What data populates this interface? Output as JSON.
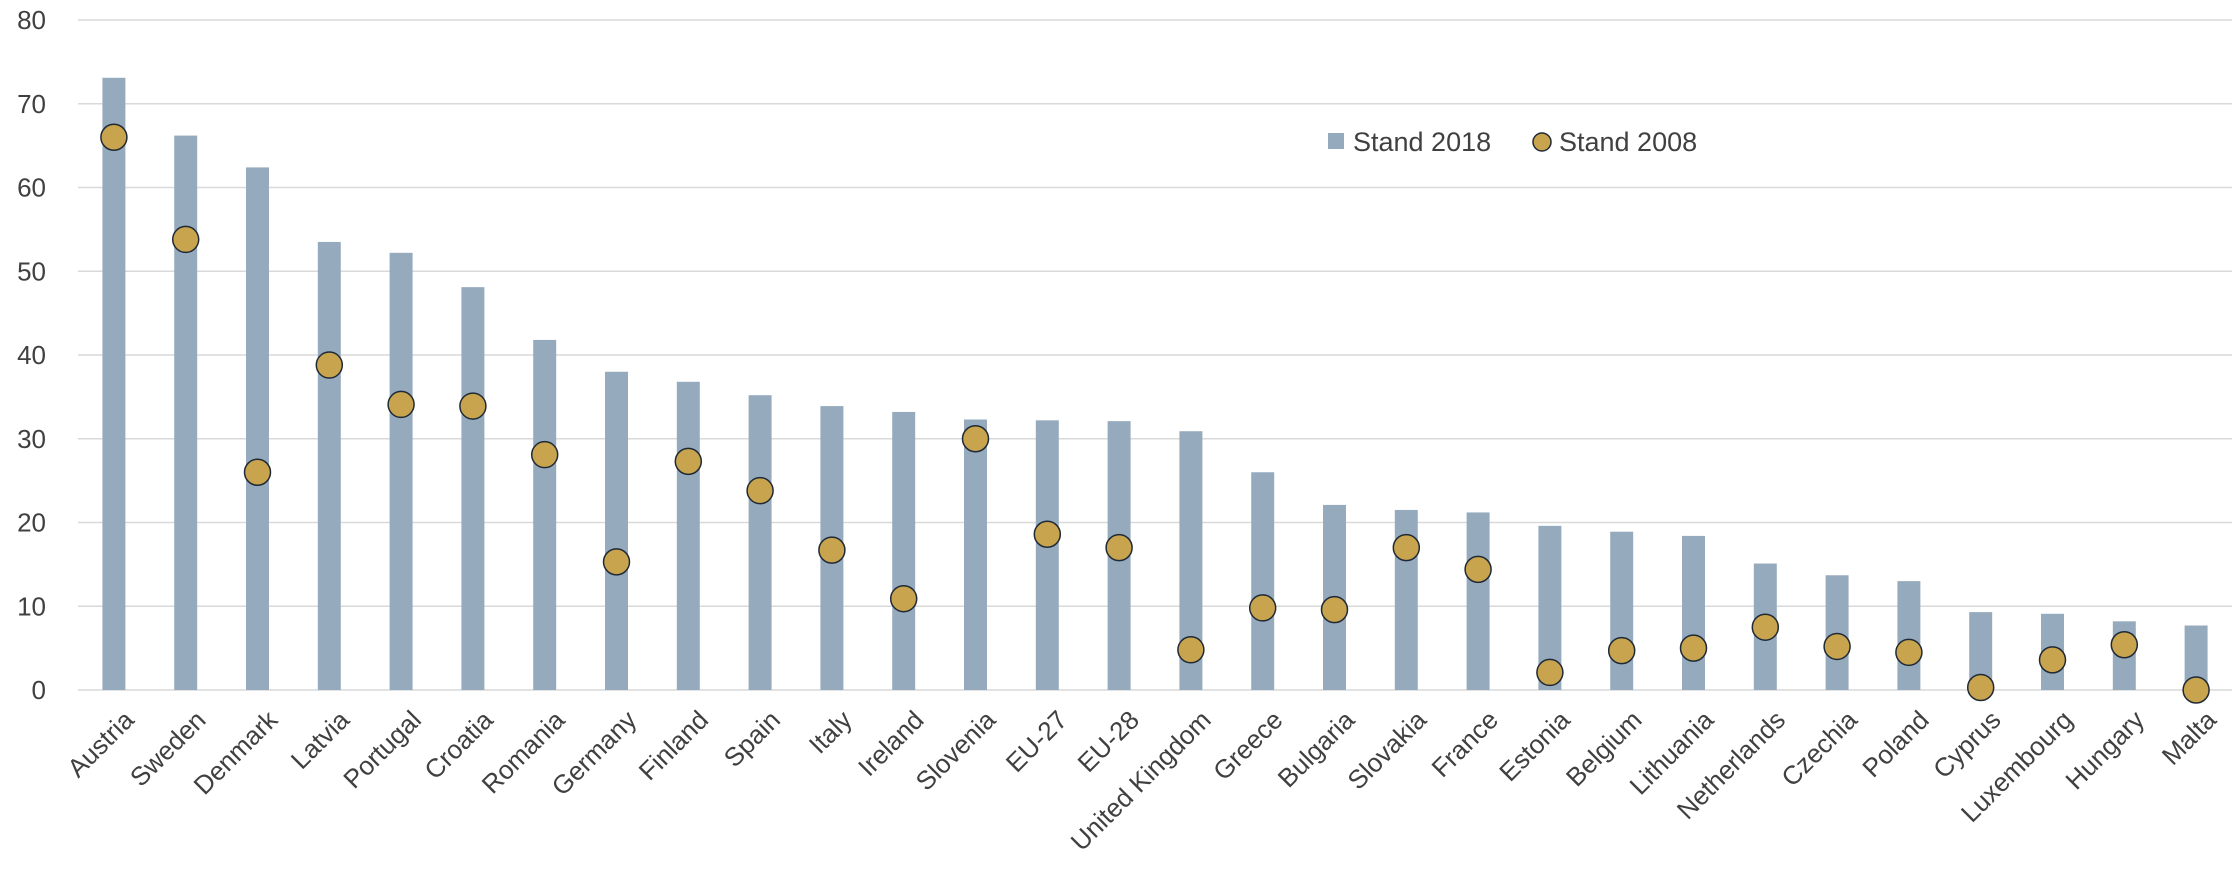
{
  "chart_data": {
    "type": "bar",
    "categories": [
      "Austria",
      "Sweden",
      "Denmark",
      "Latvia",
      "Portugal",
      "Croatia",
      "Romania",
      "Germany",
      "Finland",
      "Spain",
      "Italy",
      "Ireland",
      "Slovenia",
      "EU-27",
      "EU-28",
      "United Kingdom",
      "Greece",
      "Bulgaria",
      "Slovakia",
      "France",
      "Estonia",
      "Belgium",
      "Lithuania",
      "Netherlands",
      "Czechia",
      "Poland",
      "Cyprus",
      "Luxembourg",
      "Hungary",
      "Malta"
    ],
    "series": [
      {
        "name": "Stand 2018",
        "type": "bar",
        "color": "#96aabd",
        "values": [
          73.1,
          66.2,
          62.4,
          53.5,
          52.2,
          48.1,
          41.8,
          38.0,
          36.8,
          35.2,
          33.9,
          33.2,
          32.3,
          32.2,
          32.1,
          30.9,
          26.0,
          22.1,
          21.5,
          21.2,
          19.6,
          18.9,
          18.4,
          15.1,
          13.7,
          13.0,
          9.3,
          9.1,
          8.2,
          7.7
        ]
      },
      {
        "name": "Stand 2008",
        "type": "scatter",
        "color": "#c8a44e",
        "values": [
          66.0,
          53.8,
          26.0,
          38.8,
          34.1,
          33.9,
          28.1,
          15.3,
          27.3,
          23.8,
          16.7,
          10.9,
          30.0,
          18.6,
          17.0,
          4.8,
          9.8,
          9.6,
          17.0,
          14.4,
          2.1,
          4.7,
          5.0,
          7.5,
          5.2,
          4.5,
          0.3,
          3.6,
          5.4,
          0.0
        ]
      }
    ],
    "yticks": [
      0,
      10,
      20,
      30,
      40,
      50,
      60,
      70,
      80
    ],
    "ylim": [
      0,
      80
    ],
    "grid": true,
    "legend_position": "top-right"
  }
}
